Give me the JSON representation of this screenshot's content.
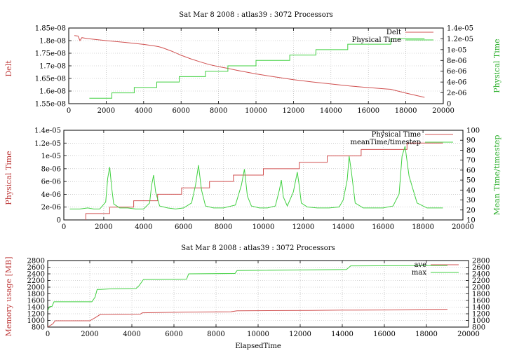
{
  "chart_data": [
    {
      "type": "line",
      "title": "Sat Mar 8 2008 : atlas39 : 3072 Processors",
      "xlabel": "",
      "ylabel": "Delt",
      "y2label": "Physical Time",
      "xlim": [
        0,
        20000
      ],
      "ylim": [
        1.55e-08,
        1.85e-08
      ],
      "y2lim": [
        0,
        1.4e-05
      ],
      "xticks": [
        "0",
        "2000",
        "4000",
        "6000",
        "8000",
        "10000",
        "12000",
        "14000",
        "16000",
        "18000",
        "20000"
      ],
      "yticks": [
        "1.55e-08",
        "1.6e-08",
        "1.65e-08",
        "1.7e-08",
        "1.75e-08",
        "1.8e-08",
        "1.85e-08"
      ],
      "y2ticks": [
        "0",
        "2e-06",
        "4e-06",
        "6e-06",
        "8e-06",
        "1e-05",
        "1.2e-05",
        "1.4e-05"
      ],
      "grid": true,
      "legend_position": "top-right",
      "series": [
        {
          "name": "Delt",
          "color": "#d05050",
          "axis": "y",
          "x": [
            300,
            500,
            600,
            700,
            1000,
            2000,
            3000,
            4000,
            4500,
            4800,
            5000,
            5500,
            6000,
            6500,
            7000,
            7500,
            8000,
            8500,
            9000,
            10000,
            11000,
            12000,
            13000,
            14000,
            15000,
            16000,
            17000,
            17200,
            18000,
            19000
          ],
          "y": [
            1.82e-08,
            1.818e-08,
            1.8e-08,
            1.812e-08,
            1.808e-08,
            1.8e-08,
            1.793e-08,
            1.785e-08,
            1.78e-08,
            1.776e-08,
            1.772e-08,
            1.758e-08,
            1.742e-08,
            1.728e-08,
            1.716e-08,
            1.705e-08,
            1.697e-08,
            1.69e-08,
            1.682e-08,
            1.668e-08,
            1.656e-08,
            1.645e-08,
            1.636e-08,
            1.628e-08,
            1.62e-08,
            1.614e-08,
            1.608e-08,
            1.607e-08,
            1.592e-08,
            1.575e-08
          ]
        },
        {
          "name": "Physical Time",
          "color": "#40d040",
          "axis": "y2",
          "x": [
            1100,
            2300,
            2300,
            3500,
            3500,
            4700,
            4700,
            5900,
            5900,
            7300,
            7300,
            8500,
            8500,
            10000,
            10000,
            11800,
            11800,
            13200,
            13200,
            14900,
            14900,
            17200,
            17200,
            19000
          ],
          "y": [
            1e-06,
            1e-06,
            2e-06,
            2e-06,
            3e-06,
            3e-06,
            4e-06,
            4e-06,
            5e-06,
            5e-06,
            6e-06,
            6e-06,
            7e-06,
            7e-06,
            8e-06,
            8e-06,
            9e-06,
            9e-06,
            1e-05,
            1e-05,
            1.1e-05,
            1.1e-05,
            1.2e-05,
            1.2e-05
          ]
        }
      ]
    },
    {
      "type": "line",
      "title": "",
      "xlabel": "",
      "ylabel": "Physical Time",
      "y2label": "Mean Time/timestep",
      "xlim": [
        0,
        20000
      ],
      "ylim": [
        0,
        1.4e-05
      ],
      "y2lim": [
        10,
        100
      ],
      "xticks": [
        "0",
        "2000",
        "4000",
        "6000",
        "8000",
        "10000",
        "12000",
        "14000",
        "16000",
        "18000",
        "20000"
      ],
      "yticks": [
        "0",
        "2e-06",
        "4e-06",
        "6e-06",
        "8e-06",
        "1e-05",
        "1.2e-05",
        "1.4e-05"
      ],
      "y2ticks": [
        "10",
        "20",
        "30",
        "40",
        "50",
        "60",
        "70",
        "80",
        "90",
        "100"
      ],
      "grid": true,
      "legend_position": "top-right",
      "series": [
        {
          "name": "Physical Time",
          "color": "#d05050",
          "axis": "y",
          "x": [
            1100,
            1100,
            2300,
            2300,
            3500,
            3500,
            4700,
            4700,
            5900,
            5900,
            7300,
            7300,
            8500,
            8500,
            10000,
            10000,
            11800,
            11800,
            13200,
            13200,
            14900,
            14900,
            17200,
            17200,
            19000
          ],
          "y": [
            0,
            1e-06,
            1e-06,
            2e-06,
            2e-06,
            3e-06,
            3e-06,
            4e-06,
            4e-06,
            5e-06,
            5e-06,
            6e-06,
            6e-06,
            7e-06,
            7e-06,
            8e-06,
            8e-06,
            9e-06,
            9e-06,
            1e-05,
            1e-05,
            1.1e-05,
            1.1e-05,
            1.2e-05,
            1.2e-05
          ]
        },
        {
          "name": "meanTime/timestep",
          "color": "#40d040",
          "axis": "y2",
          "x": [
            300,
            800,
            1200,
            1500,
            1800,
            2100,
            2200,
            2300,
            2400,
            2500,
            2800,
            3200,
            3600,
            4000,
            4300,
            4400,
            4500,
            4600,
            4800,
            5200,
            5600,
            6000,
            6400,
            6600,
            6750,
            6900,
            7100,
            7500,
            8000,
            8600,
            8900,
            9050,
            9200,
            9400,
            9800,
            10200,
            10600,
            10800,
            10900,
            11000,
            11200,
            11500,
            11700,
            11800,
            11900,
            12200,
            12700,
            13300,
            13800,
            14000,
            14200,
            14300,
            14400,
            14600,
            15000,
            15500,
            16000,
            16500,
            16800,
            16950,
            17100,
            17300,
            17700,
            18200,
            18700,
            19000
          ],
          "y": [
            21,
            21,
            22,
            21,
            21,
            28,
            52,
            63,
            42,
            26,
            22,
            22,
            21,
            21,
            27,
            45,
            55,
            38,
            24,
            22,
            21,
            22,
            27,
            45,
            65,
            40,
            24,
            22,
            22,
            25,
            45,
            61,
            34,
            24,
            22,
            22,
            24,
            40,
            50,
            33,
            24,
            38,
            58,
            44,
            27,
            23,
            22,
            22,
            23,
            30,
            50,
            74,
            60,
            27,
            22,
            22,
            22,
            24,
            36,
            74,
            84,
            54,
            27,
            22,
            22,
            22
          ]
        }
      ]
    },
    {
      "type": "line",
      "title": "Sat Mar 8 2008 : atlas39 : 3072 Processors",
      "xlabel": "ElapsedTime",
      "ylabel": "Memory usage [MB]",
      "y2label": "",
      "xlim": [
        0,
        20000
      ],
      "ylim": [
        800,
        2800
      ],
      "y2lim": [
        800,
        2800
      ],
      "xticks": [
        "0",
        "2000",
        "4000",
        "6000",
        "8000",
        "10000",
        "12000",
        "14000",
        "16000",
        "18000",
        "20000"
      ],
      "yticks": [
        "800",
        "1000",
        "1200",
        "1400",
        "1600",
        "1800",
        "2000",
        "2200",
        "2400",
        "2600",
        "2800"
      ],
      "y2ticks": [
        "800",
        "1000",
        "1200",
        "1400",
        "1600",
        "1800",
        "2000",
        "2200",
        "2400",
        "2600",
        "2800"
      ],
      "grid": true,
      "legend_position": "top-right",
      "series": [
        {
          "name": "ave",
          "color": "#d05050",
          "axis": "y",
          "x": [
            0,
            250,
            350,
            2000,
            2300,
            2500,
            4400,
            4500,
            6500,
            8700,
            9000,
            12500,
            14000,
            16500,
            18000,
            19000
          ],
          "y": [
            800,
            900,
            990,
            990,
            1100,
            1180,
            1190,
            1230,
            1250,
            1260,
            1290,
            1300,
            1310,
            1315,
            1330,
            1335
          ]
        },
        {
          "name": "max",
          "color": "#40d040",
          "axis": "y",
          "x": [
            0,
            100,
            200,
            300,
            2100,
            2250,
            2350,
            2500,
            3000,
            4200,
            4350,
            4550,
            6600,
            6700,
            8900,
            9000,
            14200,
            14400,
            19000
          ],
          "y": [
            1300,
            1420,
            1420,
            1560,
            1560,
            1700,
            1930,
            1930,
            1950,
            1960,
            2050,
            2230,
            2240,
            2400,
            2410,
            2500,
            2530,
            2640,
            2650
          ]
        }
      ]
    }
  ]
}
